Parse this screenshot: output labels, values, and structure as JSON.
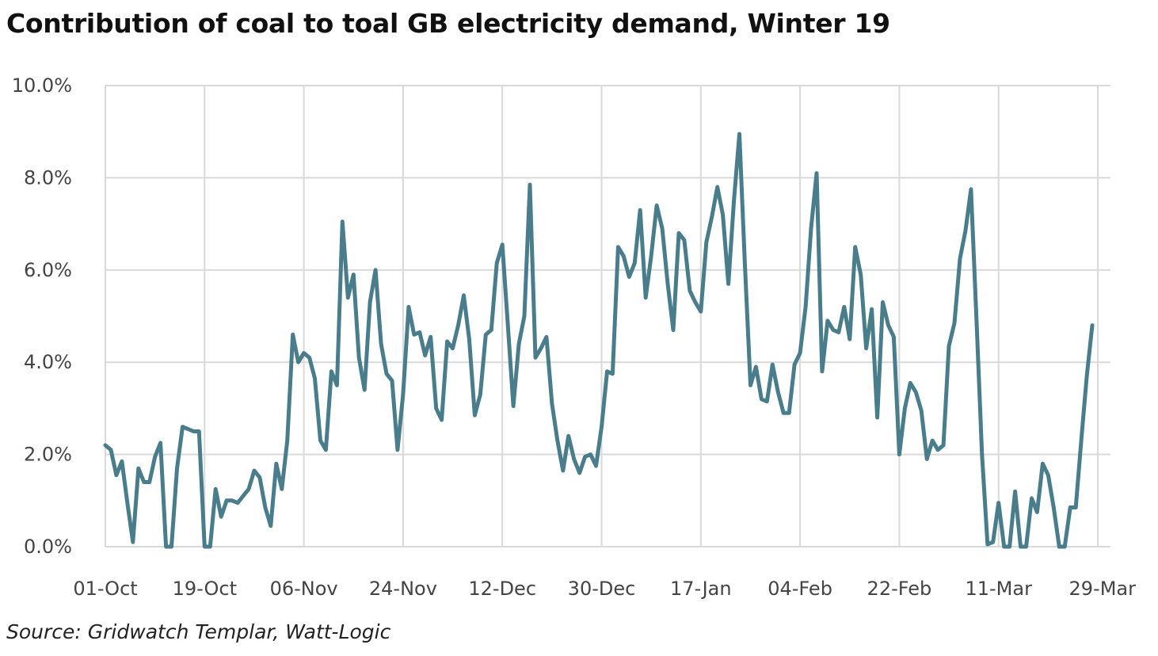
{
  "chart_data": {
    "type": "line",
    "title": "Contribution of coal to toal GB electricity demand, Winter 19",
    "source": "Source: Gridwatch Templar, Watt-Logic",
    "xlabel": "",
    "ylabel": "",
    "x_ticks": [
      "01-Oct",
      "19-Oct",
      "06-Nov",
      "24-Nov",
      "12-Dec",
      "30-Dec",
      "17-Jan",
      "04-Feb",
      "22-Feb",
      "11-Mar",
      "29-Mar"
    ],
    "y_ticks": [
      "0.0%",
      "2.0%",
      "4.0%",
      "6.0%",
      "8.0%",
      "10.0%"
    ],
    "ylim": [
      0,
      10
    ],
    "grid": true,
    "legend": "none",
    "line_color": "#4a7d8c",
    "series": [
      {
        "values": [
          2.2,
          2.1,
          1.55,
          1.85,
          0.95,
          0.1,
          1.7,
          1.4,
          1.4,
          1.95,
          2.25,
          0.0,
          0.0,
          1.7,
          2.6,
          2.55,
          2.5,
          2.5,
          0.0,
          0.0,
          1.25,
          0.65,
          1.0,
          1.0,
          0.95,
          1.1,
          1.25,
          1.65,
          1.5,
          0.85,
          0.45,
          1.8,
          1.25,
          2.3,
          4.6,
          4.0,
          4.2,
          4.1,
          3.65,
          2.3,
          2.1,
          3.8,
          3.5,
          7.05,
          5.4,
          5.9,
          4.1,
          3.4,
          5.3,
          6.0,
          4.4,
          3.75,
          3.6,
          2.1,
          3.3,
          5.2,
          4.6,
          4.65,
          4.15,
          4.55,
          3.0,
          2.75,
          4.45,
          4.3,
          4.8,
          5.45,
          4.5,
          2.85,
          3.3,
          4.6,
          4.7,
          6.15,
          6.55,
          4.8,
          3.05,
          4.4,
          5.0,
          7.85,
          4.1,
          4.3,
          4.55,
          3.1,
          2.3,
          1.65,
          2.4,
          1.9,
          1.6,
          1.95,
          2.0,
          1.75,
          2.6,
          3.8,
          3.75,
          6.5,
          6.3,
          5.85,
          6.15,
          7.3,
          5.4,
          6.3,
          7.4,
          6.9,
          5.7,
          4.7,
          6.8,
          6.65,
          5.55,
          5.3,
          5.1,
          6.6,
          7.15,
          7.8,
          7.2,
          5.7,
          7.5,
          8.95,
          6.1,
          3.5,
          3.9,
          3.2,
          3.15,
          3.95,
          3.35,
          2.9,
          2.9,
          3.95,
          4.2,
          5.2,
          6.9,
          8.1,
          3.8,
          4.9,
          4.7,
          4.65,
          5.2,
          4.5,
          6.5,
          5.9,
          4.3,
          5.15,
          2.8,
          5.3,
          4.8,
          4.55,
          2.0,
          3.0,
          3.55,
          3.35,
          2.95,
          1.9,
          2.3,
          2.1,
          2.2,
          4.35,
          4.85,
          6.25,
          6.85,
          7.75,
          4.9,
          2.0,
          0.05,
          0.1,
          0.95,
          0.0,
          0.0,
          1.2,
          0.0,
          0.0,
          1.05,
          0.75,
          1.8,
          1.55,
          0.85,
          0.0,
          0.0,
          0.85,
          0.85,
          2.3,
          3.7,
          4.8
        ]
      }
    ]
  }
}
